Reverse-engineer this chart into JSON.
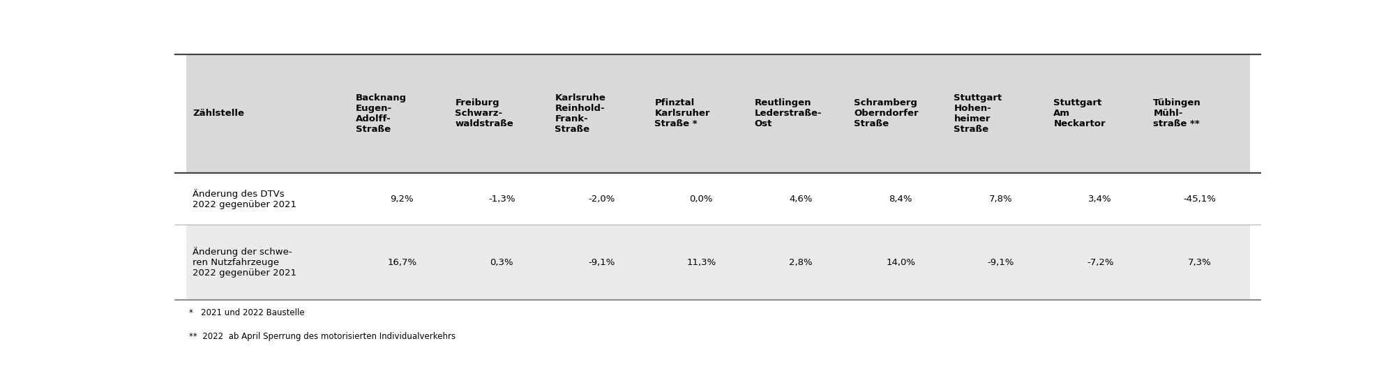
{
  "header_col": "Zählstelle",
  "columns": [
    "Backnang\nEugen-\nAdolff-\nStraße",
    "Freiburg\nSchwarz-\nwaldstraße",
    "Karlsruhe\nReinhold-\nFrank-\nStraße",
    "Pfinztal\nKarlsruher\nStraße *",
    "Reutlingen\nLederstraße-\nOst",
    "Schramberg\nOberndorfer\nStraße",
    "Stuttgart\nHohen-\nheimer\nStraße",
    "Stuttgart\nAm\nNeckartor",
    "Tübingen\nMühl-\nstraße **"
  ],
  "row1_label": "Änderung des DTVs\n2022 gegenüber 2021",
  "row1_values": [
    "9,2%",
    "-1,3%",
    "-2,0%",
    "0,0%",
    "4,6%",
    "8,4%",
    "7,8%",
    "3,4%",
    "-45,1%"
  ],
  "row2_label": "Änderung der schwe-\nren Nutzfahrzeuge\n2022 gegenüber 2021",
  "row2_values": [
    "16,7%",
    "0,3%",
    "-9,1%",
    "11,3%",
    "2,8%",
    "14,0%",
    "-9,1%",
    "-7,2%",
    "7,3%"
  ],
  "footnote1": "*   2021 und 2022 Baustelle",
  "footnote2": "**  2022  ab April Sperrung des motorisierten Individualverkehrs",
  "bg_header": "#d9d9d9",
  "bg_row1": "#ffffff",
  "bg_row2": "#ebebeb",
  "bg_footer": "#ffffff",
  "text_color": "#000000",
  "font_size_header": 9.5,
  "font_size_data": 9.5,
  "font_size_footnote": 8.5
}
